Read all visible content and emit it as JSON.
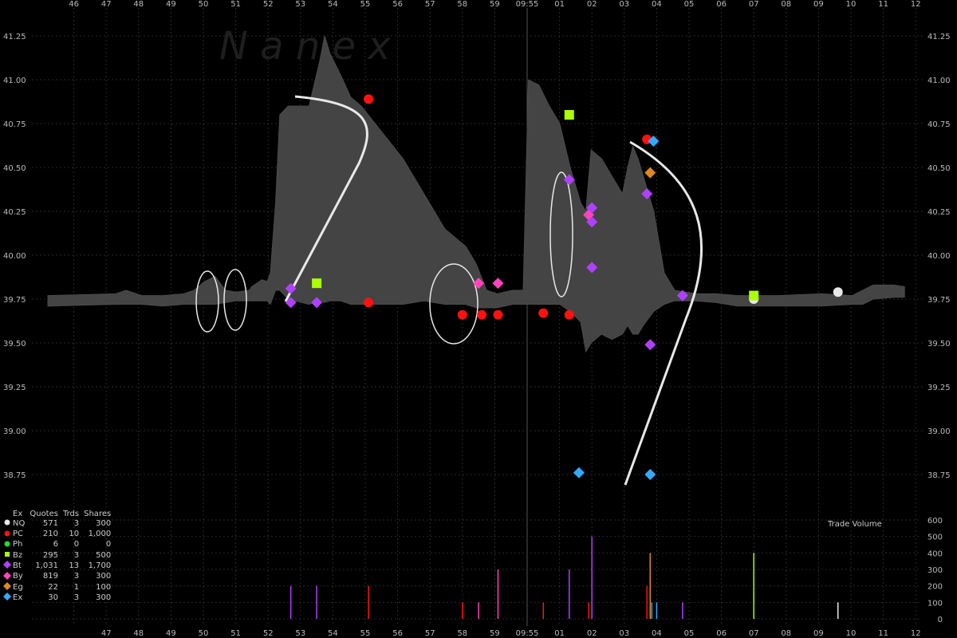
{
  "chart_data": {
    "type": "scatter",
    "watermark": "N a n e x",
    "price_axis": {
      "ylim": [
        38.65,
        41.3
      ],
      "ticks": [
        "38.75",
        "39.00",
        "39.25",
        "39.50",
        "39.75",
        "40.00",
        "40.25",
        "40.50",
        "40.75",
        "41.00",
        "41.25"
      ]
    },
    "time_axis": {
      "labels": [
        "46",
        "47",
        "48",
        "49",
        "50",
        "51",
        "52",
        "53",
        "54",
        "55",
        "56",
        "57",
        "58",
        "59",
        "09:55",
        "01",
        "02",
        "03",
        "04",
        "05",
        "06",
        "07",
        "08",
        "09",
        "10",
        "11",
        "12"
      ]
    },
    "volume_axis": {
      "title": "Trade Volume",
      "ylim": [
        0,
        600
      ],
      "ticks": [
        "0",
        "100",
        "200",
        "300",
        "400",
        "500",
        "600"
      ]
    },
    "legend": {
      "headers": {
        "ex": "Ex",
        "quotes": "Quotes",
        "trds": "Trds",
        "shares": "Shares"
      },
      "rows": [
        {
          "ex": "NQ",
          "quotes": "571",
          "trds": "3",
          "shares": "300",
          "color": "#e8e8e8",
          "shape": "circle"
        },
        {
          "ex": "PC",
          "quotes": "210",
          "trds": "10",
          "shares": "1,000",
          "color": "#ff1111",
          "shape": "circle"
        },
        {
          "ex": "Ph",
          "quotes": "6",
          "trds": "0",
          "shares": "0",
          "color": "#22dd22",
          "shape": "circle"
        },
        {
          "ex": "Bz",
          "quotes": "295",
          "trds": "3",
          "shares": "500",
          "color": "#aaff00",
          "shape": "square"
        },
        {
          "ex": "Bt",
          "quotes": "1,031",
          "trds": "13",
          "shares": "1,700",
          "color": "#b040ff",
          "shape": "diamond"
        },
        {
          "ex": "By",
          "quotes": "819",
          "trds": "3",
          "shares": "300",
          "color": "#ff44bb",
          "shape": "diamond"
        },
        {
          "ex": "Eg",
          "quotes": "22",
          "trds": "1",
          "shares": "100",
          "color": "#e08820",
          "shape": "diamond"
        },
        {
          "ex": "Ex",
          "quotes": "30",
          "trds": "3",
          "shares": "300",
          "color": "#33aaff",
          "shape": "diamond"
        }
      ]
    },
    "spread_band": [
      [
        0,
        39.71,
        39.77
      ],
      [
        6.5,
        39.72,
        39.78
      ],
      [
        7.5,
        39.72,
        39.8
      ],
      [
        9,
        39.72,
        39.77
      ],
      [
        11,
        39.71,
        39.77
      ],
      [
        13,
        39.72,
        39.78
      ],
      [
        14,
        39.72,
        39.8
      ],
      [
        15,
        39.72,
        39.85
      ],
      [
        16,
        39.72,
        39.88
      ],
      [
        17,
        39.73,
        39.8
      ],
      [
        18,
        39.74,
        39.79
      ],
      [
        19.3,
        39.74,
        39.8
      ],
      [
        19.5,
        39.74,
        39.82
      ],
      [
        20.5,
        39.74,
        39.86
      ],
      [
        21,
        39.74,
        39.85
      ],
      [
        21.3,
        39.72,
        39.9
      ],
      [
        21.8,
        39.8,
        40.3
      ],
      [
        22.2,
        39.8,
        40.8
      ],
      [
        23,
        39.75,
        40.85
      ],
      [
        25,
        39.72,
        40.85
      ],
      [
        26,
        39.74,
        41.1
      ],
      [
        26.5,
        39.73,
        41.25
      ],
      [
        27,
        39.74,
        41.15
      ],
      [
        28,
        39.74,
        41.03
      ],
      [
        29,
        39.72,
        40.9
      ],
      [
        30,
        39.72,
        40.85
      ],
      [
        32,
        39.72,
        40.7
      ],
      [
        34,
        39.72,
        40.55
      ],
      [
        36,
        39.74,
        40.35
      ],
      [
        38,
        39.72,
        40.15
      ],
      [
        40,
        39.72,
        40.05
      ],
      [
        41,
        39.7,
        39.95
      ],
      [
        42,
        39.7,
        39.8
      ],
      [
        43,
        39.7,
        39.78
      ],
      [
        44.5,
        39.72,
        39.8
      ],
      [
        45.5,
        39.72,
        39.8
      ],
      [
        46,
        39.72,
        41.0
      ],
      [
        47,
        39.72,
        40.97
      ],
      [
        48,
        39.72,
        40.85
      ],
      [
        49,
        39.72,
        40.75
      ],
      [
        50,
        39.68,
        40.5
      ],
      [
        51,
        39.62,
        40.3
      ],
      [
        51.5,
        39.45,
        40.25
      ],
      [
        52,
        39.5,
        40.6
      ],
      [
        53,
        39.55,
        40.55
      ],
      [
        54,
        39.52,
        40.45
      ],
      [
        55,
        39.55,
        40.35
      ],
      [
        55.5,
        39.6,
        40.5
      ],
      [
        56,
        39.55,
        40.62
      ],
      [
        56.5,
        39.55,
        40.55
      ],
      [
        57,
        39.6,
        40.45
      ],
      [
        58,
        39.68,
        40.25
      ],
      [
        59,
        39.72,
        39.9
      ],
      [
        60,
        39.74,
        39.8
      ],
      [
        62,
        39.74,
        39.78
      ],
      [
        64,
        39.73,
        39.78
      ],
      [
        66,
        39.71,
        39.77
      ],
      [
        70,
        39.71,
        39.77
      ],
      [
        74,
        39.71,
        39.78
      ],
      [
        77,
        39.72,
        39.77
      ],
      [
        78,
        39.72,
        39.8
      ],
      [
        79,
        39.75,
        39.83
      ],
      [
        81,
        39.76,
        39.83
      ],
      [
        82,
        39.76,
        39.82
      ]
    ],
    "quotes": [
      {
        "t": 7.7,
        "price": 39.81,
        "ex": "Bt"
      },
      {
        "t": 7.7,
        "price": 39.73,
        "ex": "Bt"
      },
      {
        "t": 8.5,
        "price": 39.84,
        "ex": "Bz"
      },
      {
        "t": 8.5,
        "price": 39.73,
        "ex": "Bt"
      },
      {
        "t": 10.1,
        "price": 40.89,
        "ex": "PC"
      },
      {
        "t": 10.1,
        "price": 39.73,
        "ex": "PC"
      },
      {
        "t": 13.0,
        "price": 39.66,
        "ex": "PC"
      },
      {
        "t": 13.5,
        "price": 39.84,
        "ex": "By"
      },
      {
        "t": 13.6,
        "price": 39.66,
        "ex": "PC"
      },
      {
        "t": 14.1,
        "price": 39.66,
        "ex": "PC"
      },
      {
        "t": 14.1,
        "price": 39.84,
        "ex": "By"
      },
      {
        "t": 15.5,
        "price": 39.67,
        "ex": "PC"
      },
      {
        "t": 16.3,
        "price": 40.8,
        "ex": "Bz"
      },
      {
        "t": 16.3,
        "price": 40.43,
        "ex": "Bt"
      },
      {
        "t": 16.3,
        "price": 39.66,
        "ex": "PC"
      },
      {
        "t": 16.9,
        "price": 40.23,
        "ex": "By"
      },
      {
        "t": 17.0,
        "price": 40.27,
        "ex": "Bt"
      },
      {
        "t": 17.0,
        "price": 40.19,
        "ex": "Bt"
      },
      {
        "t": 17.0,
        "price": 39.93,
        "ex": "Bt"
      },
      {
        "t": 16.6,
        "price": 38.76,
        "ex": "Ex"
      },
      {
        "t": 18.7,
        "price": 40.66,
        "ex": "PC"
      },
      {
        "t": 18.9,
        "price": 40.65,
        "ex": "Ex"
      },
      {
        "t": 18.8,
        "price": 40.47,
        "ex": "Eg"
      },
      {
        "t": 18.7,
        "price": 40.35,
        "ex": "Bt"
      },
      {
        "t": 18.8,
        "price": 39.49,
        "ex": "Bt"
      },
      {
        "t": 18.8,
        "price": 38.75,
        "ex": "Ex"
      },
      {
        "t": 19.8,
        "price": 39.77,
        "ex": "Bt"
      },
      {
        "t": 22.0,
        "price": 39.75,
        "ex": "NQ"
      },
      {
        "t": 22.0,
        "price": 39.77,
        "ex": "Bz"
      },
      {
        "t": 24.6,
        "price": 39.79,
        "ex": "NQ"
      }
    ],
    "volume_bars": [
      {
        "t": 7.7,
        "volume": 200,
        "ex": "Bt"
      },
      {
        "t": 8.5,
        "volume": 200,
        "ex": "Bt"
      },
      {
        "t": 10.1,
        "volume": 200,
        "ex": "PC"
      },
      {
        "t": 13.0,
        "volume": 100,
        "ex": "PC"
      },
      {
        "t": 13.5,
        "volume": 100,
        "ex": "By"
      },
      {
        "t": 14.1,
        "volume": 300,
        "ex": "By"
      },
      {
        "t": 15.5,
        "volume": 100,
        "ex": "PC"
      },
      {
        "t": 16.3,
        "volume": 300,
        "ex": "Bt"
      },
      {
        "t": 16.9,
        "volume": 100,
        "ex": "PC"
      },
      {
        "t": 17.0,
        "volume": 500,
        "ex": "Bt"
      },
      {
        "t": 18.7,
        "volume": 200,
        "ex": "PC"
      },
      {
        "t": 18.8,
        "volume": 400,
        "ex": "Eg"
      },
      {
        "t": 18.85,
        "volume": 100,
        "ex": "Ex"
      },
      {
        "t": 19.0,
        "volume": 100,
        "ex": "Ex"
      },
      {
        "t": 19.8,
        "volume": 100,
        "ex": "Bt"
      },
      {
        "t": 22.0,
        "volume": 400,
        "ex": "Bz"
      },
      {
        "t": 24.6,
        "volume": 100,
        "ex": "NQ"
      }
    ]
  }
}
